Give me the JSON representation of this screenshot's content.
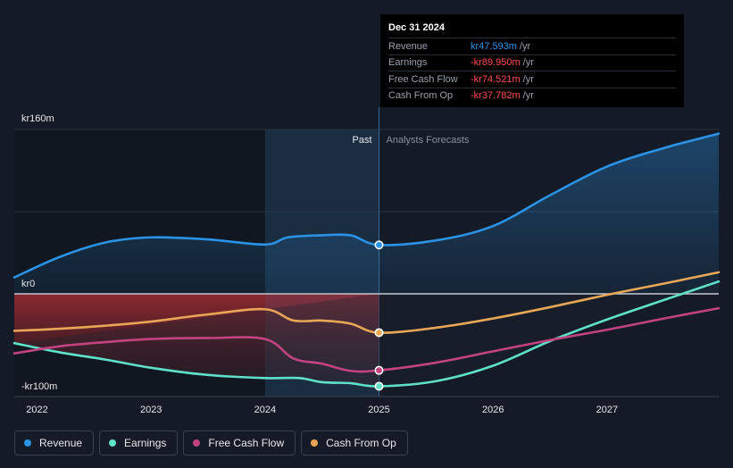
{
  "chart_data": {
    "type": "line",
    "y_axis": {
      "ylim": [
        -100,
        160
      ],
      "tick_labels": [
        "kr160m",
        "kr0",
        "-kr100m"
      ],
      "tick_values": [
        160,
        0,
        -100
      ]
    },
    "x_axis": {
      "xlim": [
        2021.8,
        2027.98
      ],
      "tick_labels": [
        "2022",
        "2023",
        "2024",
        "2025",
        "2026",
        "2027"
      ],
      "tick_values": [
        2022,
        2023,
        2024,
        2025,
        2026,
        2027
      ]
    },
    "regions": {
      "past_label": "Past",
      "forecast_label": "Analysts Forecasts",
      "divider_x": 2025,
      "highlight_start_x": 2024
    },
    "series": [
      {
        "name": "Revenue",
        "color": "#2b93e6",
        "points": [
          [
            2021.8,
            16
          ],
          [
            2022.2,
            36
          ],
          [
            2022.6,
            50
          ],
          [
            2023.0,
            55
          ],
          [
            2023.5,
            53
          ],
          [
            2024.0,
            48
          ],
          [
            2024.2,
            55
          ],
          [
            2024.5,
            57
          ],
          [
            2024.75,
            57
          ],
          [
            2025.0,
            47.6
          ],
          [
            2025.5,
            52
          ],
          [
            2026.0,
            66
          ],
          [
            2026.5,
            96
          ],
          [
            2027.0,
            124
          ],
          [
            2027.5,
            142
          ],
          [
            2027.98,
            156
          ]
        ]
      },
      {
        "name": "Earnings",
        "color": "#5fe0c9",
        "points": [
          [
            2021.8,
            -48
          ],
          [
            2022.2,
            -57
          ],
          [
            2022.6,
            -64
          ],
          [
            2023.0,
            -72
          ],
          [
            2023.5,
            -79
          ],
          [
            2024.0,
            -82
          ],
          [
            2024.3,
            -82
          ],
          [
            2024.5,
            -86
          ],
          [
            2024.75,
            -87
          ],
          [
            2025.0,
            -90
          ],
          [
            2025.5,
            -85
          ],
          [
            2026.0,
            -70
          ],
          [
            2026.5,
            -46
          ],
          [
            2027.0,
            -25
          ],
          [
            2027.5,
            -6
          ],
          [
            2027.98,
            12
          ]
        ]
      },
      {
        "name": "Free Cash Flow",
        "color": "#c2437f",
        "points": [
          [
            2021.8,
            -58
          ],
          [
            2022.2,
            -51
          ],
          [
            2022.6,
            -47
          ],
          [
            2023.0,
            -44
          ],
          [
            2023.5,
            -43
          ],
          [
            2024.0,
            -44
          ],
          [
            2024.25,
            -63
          ],
          [
            2024.5,
            -68
          ],
          [
            2024.75,
            -75
          ],
          [
            2025.0,
            -74.5
          ],
          [
            2025.5,
            -67
          ],
          [
            2026.0,
            -56
          ],
          [
            2026.5,
            -45
          ],
          [
            2027.0,
            -35
          ],
          [
            2027.5,
            -24
          ],
          [
            2027.98,
            -14
          ]
        ]
      },
      {
        "name": "Cash From Op",
        "color": "#e8a757",
        "points": [
          [
            2021.8,
            -36
          ],
          [
            2022.2,
            -34
          ],
          [
            2022.6,
            -31
          ],
          [
            2023.0,
            -27
          ],
          [
            2023.5,
            -20
          ],
          [
            2024.0,
            -15
          ],
          [
            2024.25,
            -26
          ],
          [
            2024.5,
            -26
          ],
          [
            2024.75,
            -29
          ],
          [
            2025.0,
            -37.8
          ],
          [
            2025.5,
            -33
          ],
          [
            2026.0,
            -24
          ],
          [
            2026.5,
            -13
          ],
          [
            2027.0,
            -1
          ],
          [
            2027.5,
            10
          ],
          [
            2027.98,
            21
          ]
        ]
      }
    ],
    "highlight_points_x": 2025
  },
  "tooltip": {
    "date": "Dec 31 2024",
    "rows": [
      {
        "label": "Revenue",
        "value": "kr47.593m",
        "unit": "/yr"
      },
      {
        "label": "Earnings",
        "value": "-kr89.950m",
        "unit": "/yr"
      },
      {
        "label": "Free Cash Flow",
        "value": "-kr74.521m",
        "unit": "/yr"
      },
      {
        "label": "Cash From Op",
        "value": "-kr37.782m",
        "unit": "/yr"
      }
    ]
  },
  "legend": [
    {
      "label": "Revenue",
      "color": "#2b93e6"
    },
    {
      "label": "Earnings",
      "color": "#5fe0c9"
    },
    {
      "label": "Free Cash Flow",
      "color": "#c2437f"
    },
    {
      "label": "Cash From Op",
      "color": "#e8a757"
    }
  ]
}
